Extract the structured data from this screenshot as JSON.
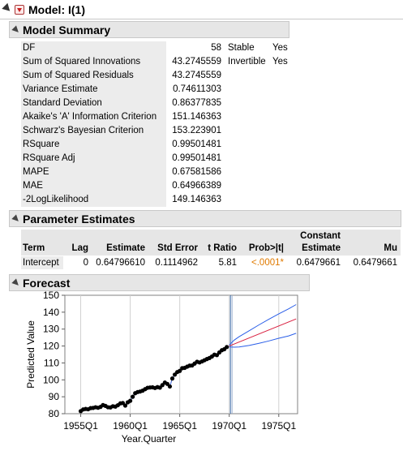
{
  "model": {
    "title": "Model: I(1)"
  },
  "summary": {
    "title": "Model Summary",
    "rows": [
      {
        "label": "DF",
        "value": "58"
      },
      {
        "label": "Sum of Squared Innovations",
        "value": "43.2745559"
      },
      {
        "label": "Sum of Squared Residuals",
        "value": "43.2745559"
      },
      {
        "label": "Variance Estimate",
        "value": "0.74611303"
      },
      {
        "label": "Standard Deviation",
        "value": "0.86377835"
      },
      {
        "label": "Akaike's 'A' Information Criterion",
        "value": "151.146363"
      },
      {
        "label": "Schwarz's Bayesian Criterion",
        "value": "153.223901"
      },
      {
        "label": "RSquare",
        "value": "0.99501481"
      },
      {
        "label": "RSquare Adj",
        "value": "0.99501481"
      },
      {
        "label": "MAPE",
        "value": "0.67581586"
      },
      {
        "label": "MAE",
        "value": "0.64966389"
      },
      {
        "label": "-2LogLikelihood",
        "value": "149.146363"
      }
    ],
    "flags": [
      {
        "label": "Stable",
        "value": "Yes"
      },
      {
        "label": "Invertible",
        "value": "Yes"
      }
    ]
  },
  "params": {
    "title": "Parameter Estimates",
    "headers": {
      "term": "Term",
      "lag": "Lag",
      "estimate": "Estimate",
      "std_error": "Std Error",
      "t_ratio": "t Ratio",
      "prob": "Prob>|t|",
      "constant_1": "Constant",
      "constant_2": "Estimate",
      "mu": "Mu"
    },
    "row": {
      "term": "Intercept",
      "lag": "0",
      "estimate": "0.64796610",
      "std_error": "0.1114962",
      "t_ratio": "5.81",
      "prob": "<.0001*",
      "constant": "0.6479661",
      "mu": "0.6479661"
    },
    "prob_color": "#e07a00"
  },
  "forecast": {
    "title": "Forecast",
    "chart_data": {
      "type": "line",
      "title": "",
      "xlabel": "Year.Quarter",
      "ylabel": "Predicted Value",
      "xticks": [
        "1955Q1",
        "1960Q1",
        "1965Q1",
        "1970Q1",
        "1975Q1"
      ],
      "yticks": [
        80,
        90,
        100,
        110,
        120,
        130,
        140,
        150
      ],
      "xlim": [
        1953.4,
        1976.9
      ],
      "ylim": [
        80,
        150
      ],
      "grid": "vertical",
      "forecast_origin": 1970.2,
      "colors": {
        "points": "#000000",
        "fit": "#3a5fd0",
        "forecast": "#d81b3c",
        "limits": "#2a5ee8",
        "origin": "#3a6aa8",
        "grid": "#d0d0d0"
      },
      "observed": {
        "name": "Observed",
        "x": [
          1955.0,
          1955.25,
          1955.5,
          1955.75,
          1956.0,
          1956.25,
          1956.5,
          1956.75,
          1957.0,
          1957.25,
          1957.5,
          1957.75,
          1958.0,
          1958.25,
          1958.5,
          1958.75,
          1959.0,
          1959.25,
          1959.5,
          1959.75,
          1960.0,
          1960.25,
          1960.5,
          1960.75,
          1961.0,
          1961.25,
          1961.5,
          1961.75,
          1962.0,
          1962.25,
          1962.5,
          1962.75,
          1963.0,
          1963.25,
          1963.5,
          1963.75,
          1964.0,
          1964.25,
          1964.5,
          1964.75,
          1965.0,
          1965.25,
          1965.5,
          1965.75,
          1966.0,
          1966.25,
          1966.5,
          1966.75,
          1967.0,
          1967.25,
          1967.5,
          1967.75,
          1968.0,
          1968.25,
          1968.5,
          1968.75,
          1969.0,
          1969.25,
          1969.5,
          1969.75
        ],
        "y": [
          81.5,
          82.5,
          82.8,
          82.6,
          83.3,
          83.4,
          83.8,
          83.5,
          84.0,
          85.1,
          84.6,
          83.8,
          83.7,
          84.4,
          84.2,
          85.0,
          86.1,
          86.3,
          84.8,
          86.7,
          87.6,
          90.0,
          92.1,
          92.8,
          93.1,
          93.6,
          94.5,
          95.3,
          95.5,
          95.6,
          95.2,
          95.7,
          95.4,
          96.9,
          98.4,
          97.6,
          96.1,
          100.8,
          103.1,
          104.6,
          105.3,
          106.9,
          107.1,
          107.8,
          108.4,
          108.5,
          109.6,
          110.7,
          110.3,
          110.9,
          111.6,
          112.3,
          112.9,
          113.8,
          114.9,
          114.6,
          116.2,
          117.5,
          118.1,
          119.4
        ]
      },
      "forecast": {
        "name": "Forecast",
        "x": [
          1970.0,
          1976.75
        ],
        "y": [
          120.0,
          136.0
        ]
      },
      "upper": {
        "name": "Upper",
        "x": [
          1970.0,
          1970.5,
          1971,
          1972,
          1973,
          1974,
          1975,
          1976,
          1976.75
        ],
        "y": [
          120.5,
          123.5,
          125.5,
          129.0,
          132.5,
          135.8,
          139.0,
          142.0,
          144.5
        ]
      },
      "lower": {
        "name": "Lower",
        "x": [
          1970.0,
          1970.5,
          1971,
          1972,
          1973,
          1974,
          1975,
          1976,
          1976.75
        ],
        "y": [
          119.5,
          119.3,
          119.4,
          120.3,
          121.6,
          123.0,
          124.6,
          126.0,
          127.5
        ]
      }
    }
  }
}
